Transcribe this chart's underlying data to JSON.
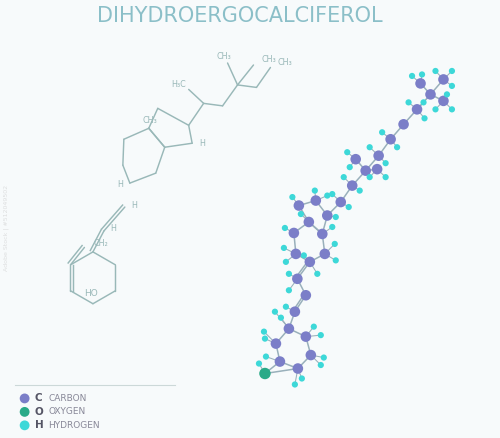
{
  "title": "DIHYDROERGOCALCIFEROL",
  "title_color": "#8bbfc8",
  "title_fontsize": 15,
  "bg_color": "#f7fafb",
  "carbon_color": "#7b7ec8",
  "oxygen_color": "#2aaa88",
  "hydrogen_color": "#3dd8d8",
  "bond_color": "#99b0bb",
  "skeletal_color": "#99b8b8",
  "legend": [
    {
      "symbol": "C",
      "label": "CARBON",
      "color": "#7b7ec8"
    },
    {
      "symbol": "O",
      "label": "OXYGEN",
      "color": "#2aaa88"
    },
    {
      "symbol": "H",
      "label": "HYDROGEN",
      "color": "#3dd8d8"
    }
  ]
}
